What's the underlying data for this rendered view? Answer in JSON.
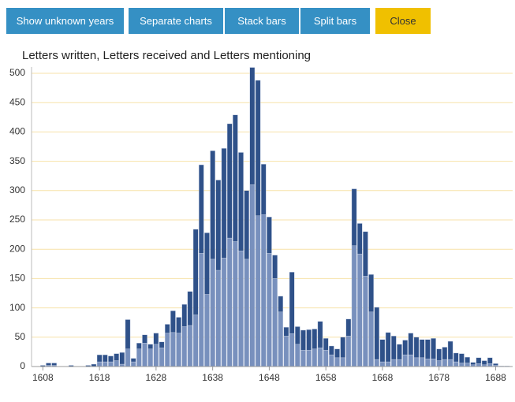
{
  "buttons": [
    "Show unknown years",
    "Separate charts",
    "Stack bars",
    "Split bars",
    "Close"
  ],
  "chart_data": {
    "type": "stacked_bar",
    "title": "Letters written, Letters received and Letters mentioning",
    "x": [
      1608,
      1609,
      1610,
      1611,
      1612,
      1613,
      1614,
      1615,
      1616,
      1617,
      1618,
      1619,
      1620,
      1621,
      1622,
      1623,
      1624,
      1625,
      1626,
      1627,
      1628,
      1629,
      1630,
      1631,
      1632,
      1633,
      1634,
      1635,
      1636,
      1637,
      1638,
      1639,
      1640,
      1641,
      1642,
      1643,
      1644,
      1645,
      1646,
      1647,
      1648,
      1649,
      1650,
      1651,
      1652,
      1653,
      1654,
      1655,
      1656,
      1657,
      1658,
      1659,
      1660,
      1661,
      1662,
      1663,
      1664,
      1665,
      1666,
      1667,
      1668,
      1669,
      1670,
      1671,
      1672,
      1673,
      1674,
      1675,
      1676,
      1677,
      1678,
      1679,
      1680,
      1681,
      1682,
      1683,
      1684,
      1685,
      1686,
      1687,
      1688,
      1689,
      1690
    ],
    "series": [
      {
        "color": "#7890bd",
        "values": [
          0,
          2,
          2,
          0,
          0,
          0,
          0,
          0,
          0,
          0,
          8,
          8,
          8,
          10,
          4,
          30,
          8,
          30,
          40,
          30,
          38,
          32,
          57,
          58,
          57,
          68,
          70,
          88,
          193,
          123,
          183,
          164,
          185,
          219,
          213,
          197,
          183,
          310,
          257,
          259,
          193,
          150,
          93,
          52,
          56,
          38,
          28,
          28,
          30,
          32,
          28,
          20,
          15,
          15,
          52,
          206,
          192,
          154,
          93,
          12,
          8,
          8,
          12,
          12,
          20,
          20,
          15,
          15,
          13,
          13,
          10,
          12,
          12,
          8,
          6,
          6,
          3,
          5,
          3,
          5,
          2,
          0,
          0
        ]
      },
      {
        "color": "#2f5189",
        "values": [
          2,
          4,
          4,
          0,
          0,
          2,
          0,
          0,
          2,
          4,
          12,
          12,
          10,
          12,
          20,
          50,
          6,
          10,
          14,
          8,
          19,
          10,
          15,
          37,
          27,
          38,
          58,
          146,
          151,
          105,
          185,
          154,
          187,
          195,
          216,
          168,
          117,
          200,
          231,
          86,
          62,
          40,
          27,
          15,
          105,
          30,
          34,
          35,
          34,
          45,
          20,
          15,
          15,
          35,
          29,
          97,
          52,
          76,
          64,
          89,
          38,
          50,
          40,
          26,
          25,
          37,
          35,
          31,
          33,
          35,
          20,
          21,
          31,
          15,
          16,
          10,
          4,
          10,
          7,
          10,
          3,
          1,
          1
        ]
      }
    ],
    "xlim": [
      1606,
      1691
    ],
    "xticks": [
      1608,
      1618,
      1628,
      1638,
      1648,
      1658,
      1668,
      1678,
      1688
    ],
    "ylim": [
      0,
      500
    ],
    "yticks": [
      0,
      50,
      100,
      150,
      200,
      250,
      300,
      350,
      400,
      450,
      500
    ],
    "grid": true
  }
}
